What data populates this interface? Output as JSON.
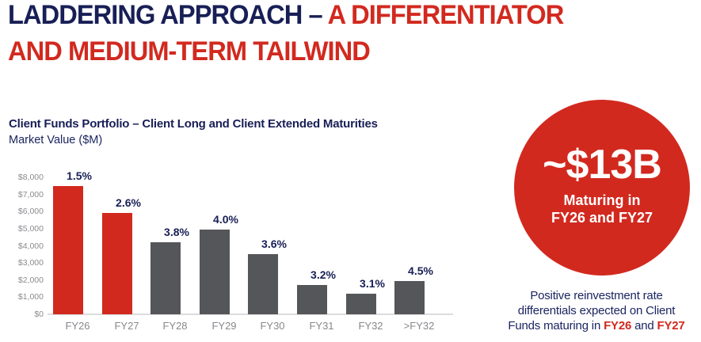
{
  "title": {
    "part_navy": "LADDERING APPROACH – ",
    "part_red": "A DIFFERENTIATOR",
    "line2_red": "AND MEDIUM-TERM TAILWIND"
  },
  "chart_header": {
    "title": "Client Funds Portfolio – Client Long and Client Extended Maturities",
    "subtitle": "Market Value ($M)"
  },
  "chart_data": {
    "type": "bar",
    "title": "Client Funds Portfolio – Client Long and Client Extended Maturities",
    "ylabel": "Market Value ($M)",
    "xlabel": "",
    "categories": [
      "FY26",
      "FY27",
      "FY28",
      "FY29",
      "FY30",
      "FY31",
      "FY32",
      ">FY32"
    ],
    "values": [
      7500,
      5900,
      4200,
      4950,
      3500,
      1700,
      1200,
      1950
    ],
    "bar_labels": [
      "1.5%",
      "2.6%",
      "3.8%",
      "4.0%",
      "3.6%",
      "3.2%",
      "3.1%",
      "4.5%"
    ],
    "bar_colors": [
      "#D2291F",
      "#D2291F",
      "#55565A",
      "#55565A",
      "#55565A",
      "#55565A",
      "#55565A",
      "#55565A"
    ],
    "y_ticks": [
      "$8,000",
      "$7,000",
      "$6,000",
      "$5,000",
      "$4,000",
      "$3,000",
      "$2,000",
      "$1,000",
      "$0"
    ],
    "ylim": [
      0,
      8000
    ],
    "grid": false,
    "legend": false
  },
  "callout": {
    "value": "~$13B",
    "line1": "Maturing in",
    "line2": "FY26 and FY27",
    "bg_color": "#D2291F",
    "text_color": "#FFFFFF"
  },
  "note": {
    "line1": "Positive reinvestment rate",
    "line2": "differentials expected on Client",
    "line3_prefix": "Funds maturing in ",
    "line3_fy1": "FY26",
    "line3_and": " and ",
    "line3_fy2": "FY27"
  },
  "colors": {
    "navy": "#181F56",
    "red": "#D2291F",
    "bar_gray": "#55565A",
    "axis_text": "#8A8B8F",
    "axis_line": "#DCDCDC"
  }
}
